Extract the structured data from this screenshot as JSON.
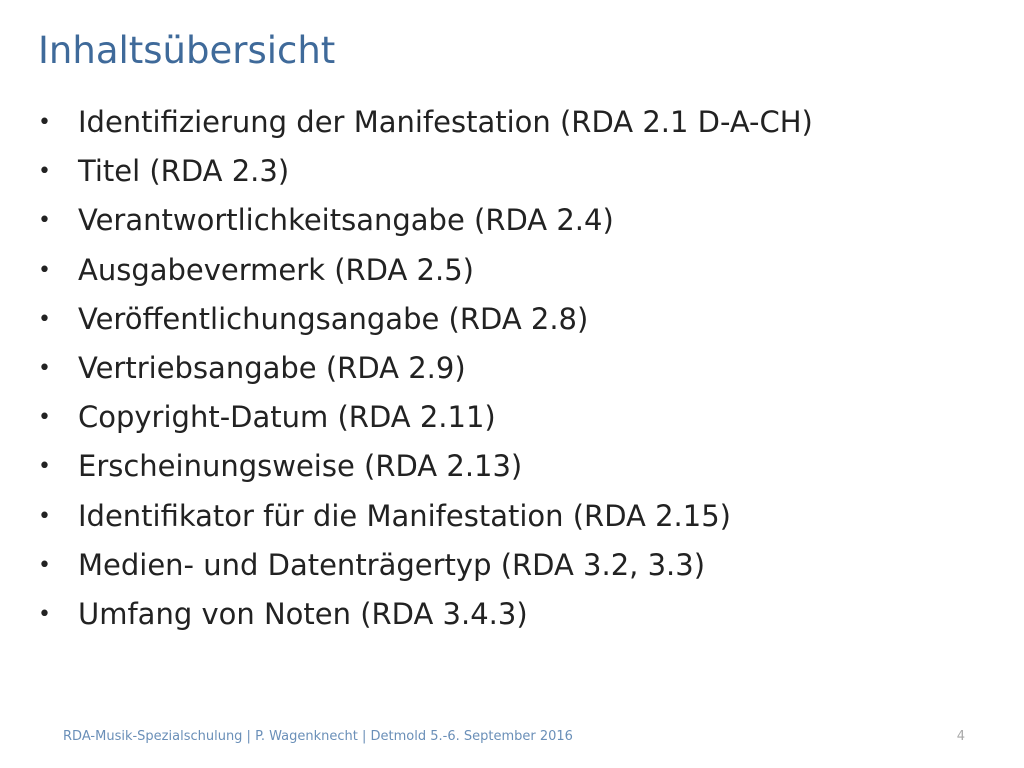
{
  "slide": {
    "title": "Inhaltsübersicht",
    "bullet_symbol": "•",
    "items": [
      "Identifizierung der Manifestation (RDA 2.1 D-A-CH)",
      "Titel (RDA 2.3)",
      "Verantwortlichkeitsangabe (RDA 2.4)",
      "Ausgabevermerk (RDA 2.5)",
      "Veröffentlichungsangabe (RDA 2.8)",
      "Vertriebsangabe (RDA 2.9)",
      "Copyright-Datum (RDA 2.11)",
      "Erscheinungsweise (RDA 2.13)",
      "Identifikator für die Manifestation (RDA 2.15)",
      "Medien- und Datenträgertyp (RDA 3.2, 3.3)",
      "Umfang von Noten (RDA 3.4.3)"
    ]
  },
  "footer": {
    "text": "RDA-Musik-Spezialschulung | P. Wagenknecht | Detmold 5.-6. September 2016",
    "page_number": "4"
  },
  "colors": {
    "title": "#3f6a9a",
    "body_text": "#222222",
    "footer_text": "#6a8fb8",
    "page_number": "#a9a9a9"
  }
}
